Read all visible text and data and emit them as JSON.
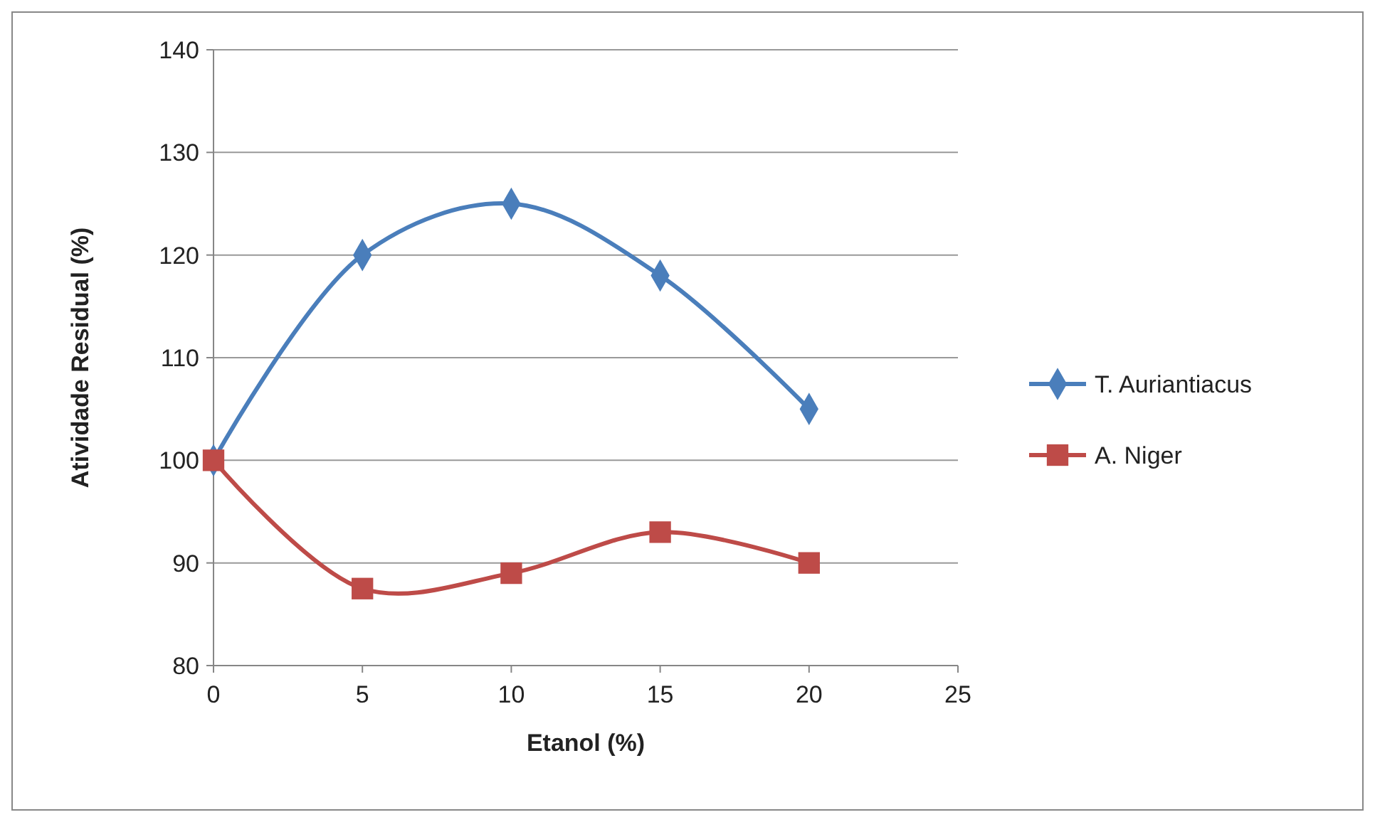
{
  "chart_data": {
    "type": "line",
    "xlabel": "Etanol (%)",
    "ylabel": "Atividade Residual (%)",
    "xlim": [
      0,
      25
    ],
    "xticks": [
      0,
      5,
      10,
      15,
      20,
      25
    ],
    "ylim": [
      80,
      140
    ],
    "yticks": [
      80,
      90,
      100,
      110,
      120,
      130,
      140
    ],
    "grid": "y",
    "legend": "right",
    "x": [
      0,
      5,
      10,
      15,
      20
    ],
    "series": [
      {
        "name": "T. Auriantiacus",
        "color": "#4a7ebb",
        "marker": "diamond",
        "values": [
          100,
          120,
          125,
          118,
          105
        ]
      },
      {
        "name": "A. Niger",
        "color": "#be4b48",
        "marker": "square",
        "values": [
          100,
          87.5,
          89,
          93,
          90
        ]
      }
    ]
  }
}
